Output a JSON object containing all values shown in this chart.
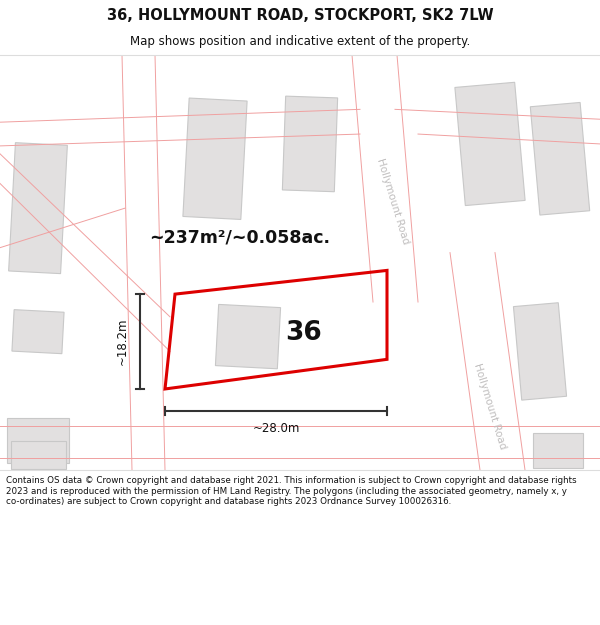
{
  "title": "36, HOLLYMOUNT ROAD, STOCKPORT, SK2 7LW",
  "subtitle": "Map shows position and indicative extent of the property.",
  "area_text": "~237m²/~0.058ac.",
  "width_text": "~28.0m",
  "height_text": "~18.2m",
  "number_text": "36",
  "footer_text": "Contains OS data © Crown copyright and database right 2021. This information is subject to Crown copyright and database rights 2023 and is reproduced with the permission of HM Land Registry. The polygons (including the associated geometry, namely x, y co-ordinates) are subject to Crown copyright and database rights 2023 Ordnance Survey 100026316.",
  "map_bg": "#f7f6f6",
  "building_fill": "#e2e0e0",
  "building_edge": "#c8c8c8",
  "road_line_color": "#f0a0a0",
  "road_label_color": "#c0bebe",
  "red_polygon_color": "#dd0000",
  "dimension_line_color": "#333333",
  "title_color": "#111111",
  "footer_color": "#111111",
  "road_label_rotation": -73
}
